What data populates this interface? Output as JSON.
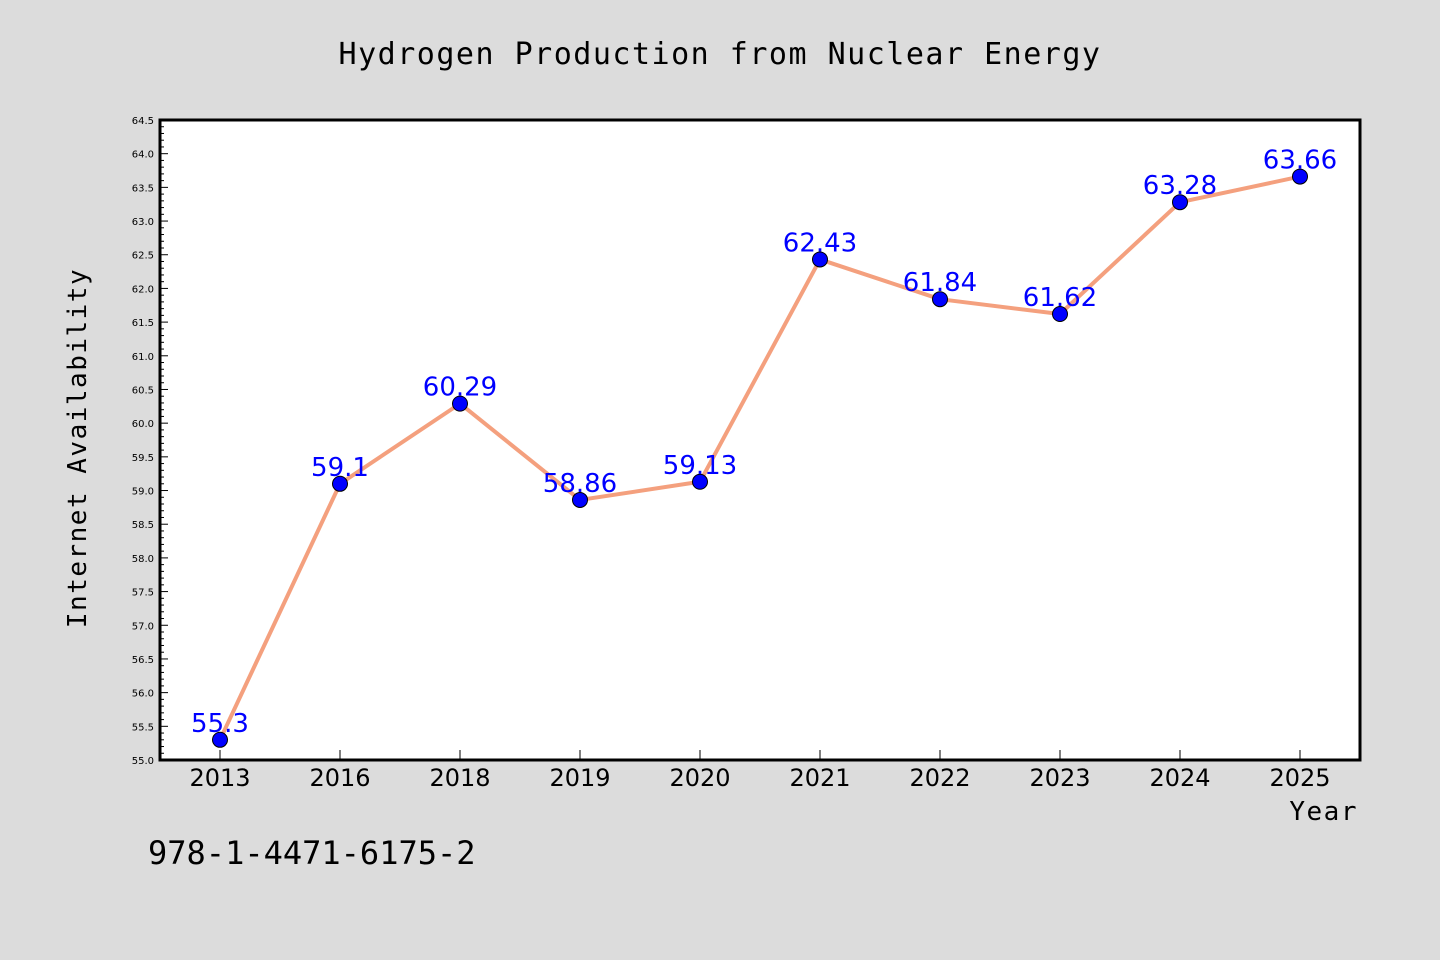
{
  "colors": {
    "background": "#dcdcdc",
    "plot_background": "#ffffff",
    "line": "#f4a07e",
    "marker": "#0000ff",
    "data_label": "#0000ff"
  },
  "footer_text": "978-1-4471-6175-2",
  "chart_data": {
    "type": "line",
    "title": "Hydrogen Production from Nuclear Energy",
    "xlabel": "Year",
    "ylabel": "Internet Availability",
    "categories": [
      "2013",
      "2016",
      "2018",
      "2019",
      "2020",
      "2021",
      "2022",
      "2023",
      "2024",
      "2025"
    ],
    "series": [
      {
        "values": [
          55.3,
          59.1,
          60.29,
          58.86,
          59.13,
          62.43,
          61.84,
          61.62,
          63.28,
          63.66
        ],
        "labels": [
          "55.3",
          "59.1",
          "60.29",
          "58.86",
          "59.13",
          "62.43",
          "61.84",
          "61.62",
          "63.28",
          "63.66"
        ]
      }
    ],
    "ylim": [
      55.0,
      64.5
    ],
    "yticks": [
      "55.0",
      "55.5",
      "56.0",
      "56.5",
      "57.0",
      "57.5",
      "58.0",
      "58.5",
      "59.0",
      "59.5",
      "60.0",
      "60.5",
      "61.0",
      "61.5",
      "62.0",
      "62.5",
      "63.0",
      "63.5",
      "64.0",
      "64.5"
    ],
    "grid": false,
    "legend": "none",
    "markers": "circle"
  }
}
